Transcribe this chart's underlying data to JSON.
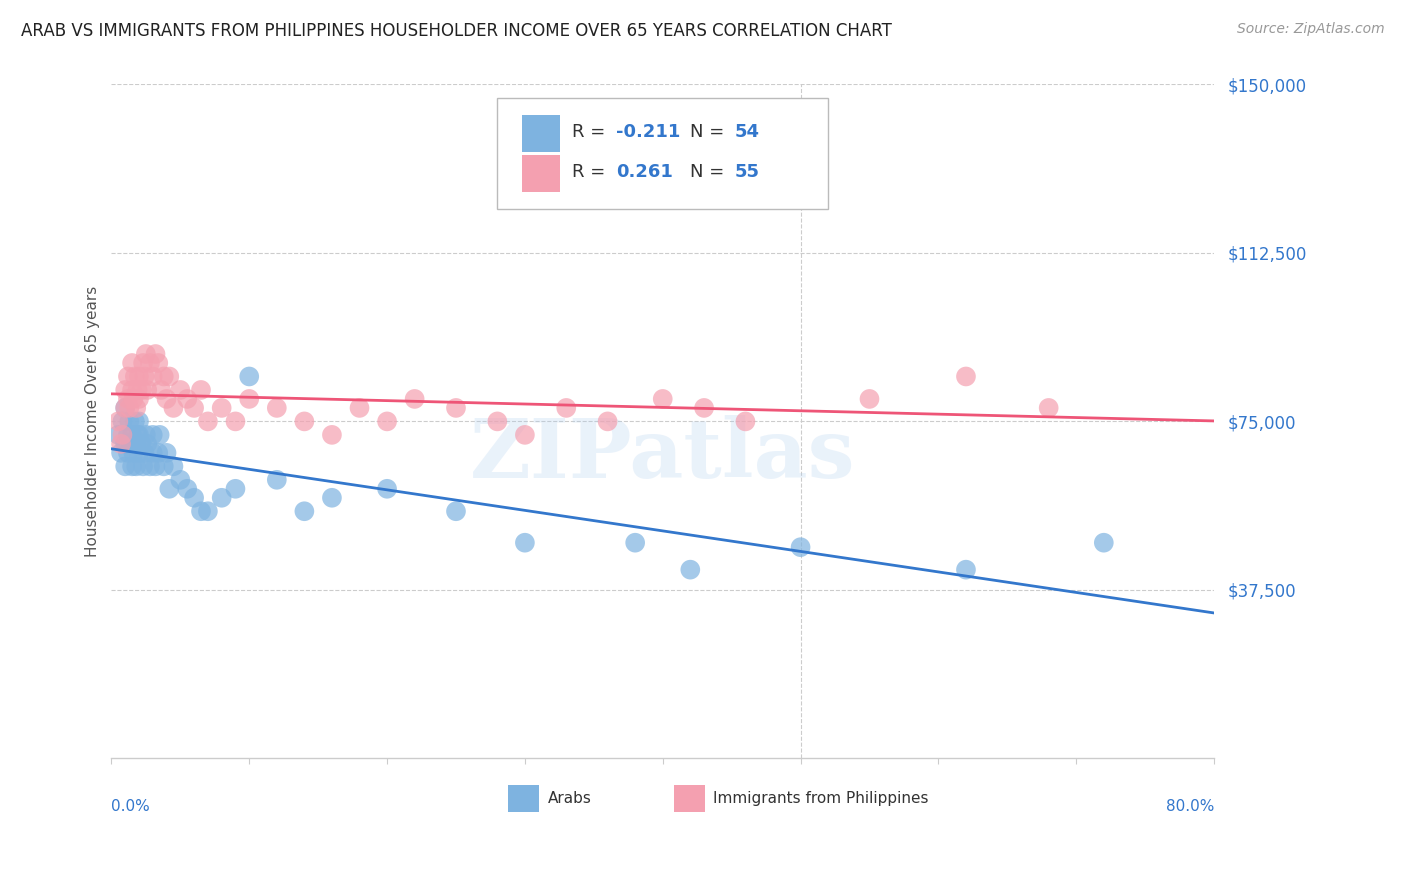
{
  "title": "ARAB VS IMMIGRANTS FROM PHILIPPINES HOUSEHOLDER INCOME OVER 65 YEARS CORRELATION CHART",
  "source": "Source: ZipAtlas.com",
  "ylabel": "Householder Income Over 65 years",
  "ylim": [
    0,
    150000
  ],
  "xlim": [
    0.0,
    0.8
  ],
  "yticks": [
    37500,
    75000,
    112500,
    150000
  ],
  "ytick_labels": [
    "$37,500",
    "$75,000",
    "$112,500",
    "$150,000"
  ],
  "arab_color": "#7EB3E0",
  "philippines_color": "#F4A0B0",
  "line_arab_color": "#3377CC",
  "line_philippines_color": "#EE5577",
  "arab_R": -0.211,
  "arab_N": 54,
  "philippines_R": 0.261,
  "philippines_N": 55,
  "watermark": "ZIPatlas",
  "background_color": "#ffffff",
  "grid_color": "#cccccc",
  "arab_x": [
    0.005,
    0.007,
    0.008,
    0.01,
    0.01,
    0.01,
    0.012,
    0.012,
    0.013,
    0.014,
    0.015,
    0.015,
    0.016,
    0.017,
    0.018,
    0.018,
    0.019,
    0.02,
    0.02,
    0.02,
    0.022,
    0.023,
    0.024,
    0.025,
    0.026,
    0.028,
    0.03,
    0.03,
    0.032,
    0.034,
    0.035,
    0.038,
    0.04,
    0.042,
    0.045,
    0.05,
    0.055,
    0.06,
    0.065,
    0.07,
    0.08,
    0.09,
    0.1,
    0.12,
    0.14,
    0.16,
    0.2,
    0.25,
    0.3,
    0.38,
    0.42,
    0.5,
    0.62,
    0.72
  ],
  "arab_y": [
    72000,
    68000,
    75000,
    70000,
    65000,
    78000,
    72000,
    68000,
    75000,
    70000,
    65000,
    72000,
    68000,
    75000,
    70000,
    65000,
    72000,
    68000,
    72000,
    75000,
    70000,
    65000,
    68000,
    72000,
    70000,
    65000,
    68000,
    72000,
    65000,
    68000,
    72000,
    65000,
    68000,
    60000,
    65000,
    62000,
    60000,
    58000,
    55000,
    55000,
    58000,
    60000,
    85000,
    62000,
    55000,
    58000,
    60000,
    55000,
    48000,
    48000,
    42000,
    47000,
    42000,
    48000
  ],
  "phil_x": [
    0.005,
    0.007,
    0.008,
    0.01,
    0.01,
    0.012,
    0.012,
    0.013,
    0.015,
    0.015,
    0.016,
    0.017,
    0.018,
    0.019,
    0.02,
    0.02,
    0.022,
    0.023,
    0.024,
    0.025,
    0.026,
    0.028,
    0.03,
    0.032,
    0.034,
    0.036,
    0.038,
    0.04,
    0.042,
    0.045,
    0.05,
    0.055,
    0.06,
    0.065,
    0.07,
    0.08,
    0.09,
    0.1,
    0.12,
    0.14,
    0.16,
    0.18,
    0.2,
    0.22,
    0.25,
    0.28,
    0.3,
    0.33,
    0.36,
    0.4,
    0.43,
    0.46,
    0.55,
    0.62,
    0.68
  ],
  "phil_y": [
    75000,
    70000,
    72000,
    78000,
    82000,
    80000,
    85000,
    78000,
    82000,
    88000,
    80000,
    85000,
    78000,
    82000,
    80000,
    85000,
    82000,
    88000,
    85000,
    90000,
    82000,
    88000,
    85000,
    90000,
    88000,
    82000,
    85000,
    80000,
    85000,
    78000,
    82000,
    80000,
    78000,
    82000,
    75000,
    78000,
    75000,
    80000,
    78000,
    75000,
    72000,
    78000,
    75000,
    80000,
    78000,
    75000,
    72000,
    78000,
    75000,
    80000,
    78000,
    75000,
    80000,
    85000,
    78000
  ]
}
